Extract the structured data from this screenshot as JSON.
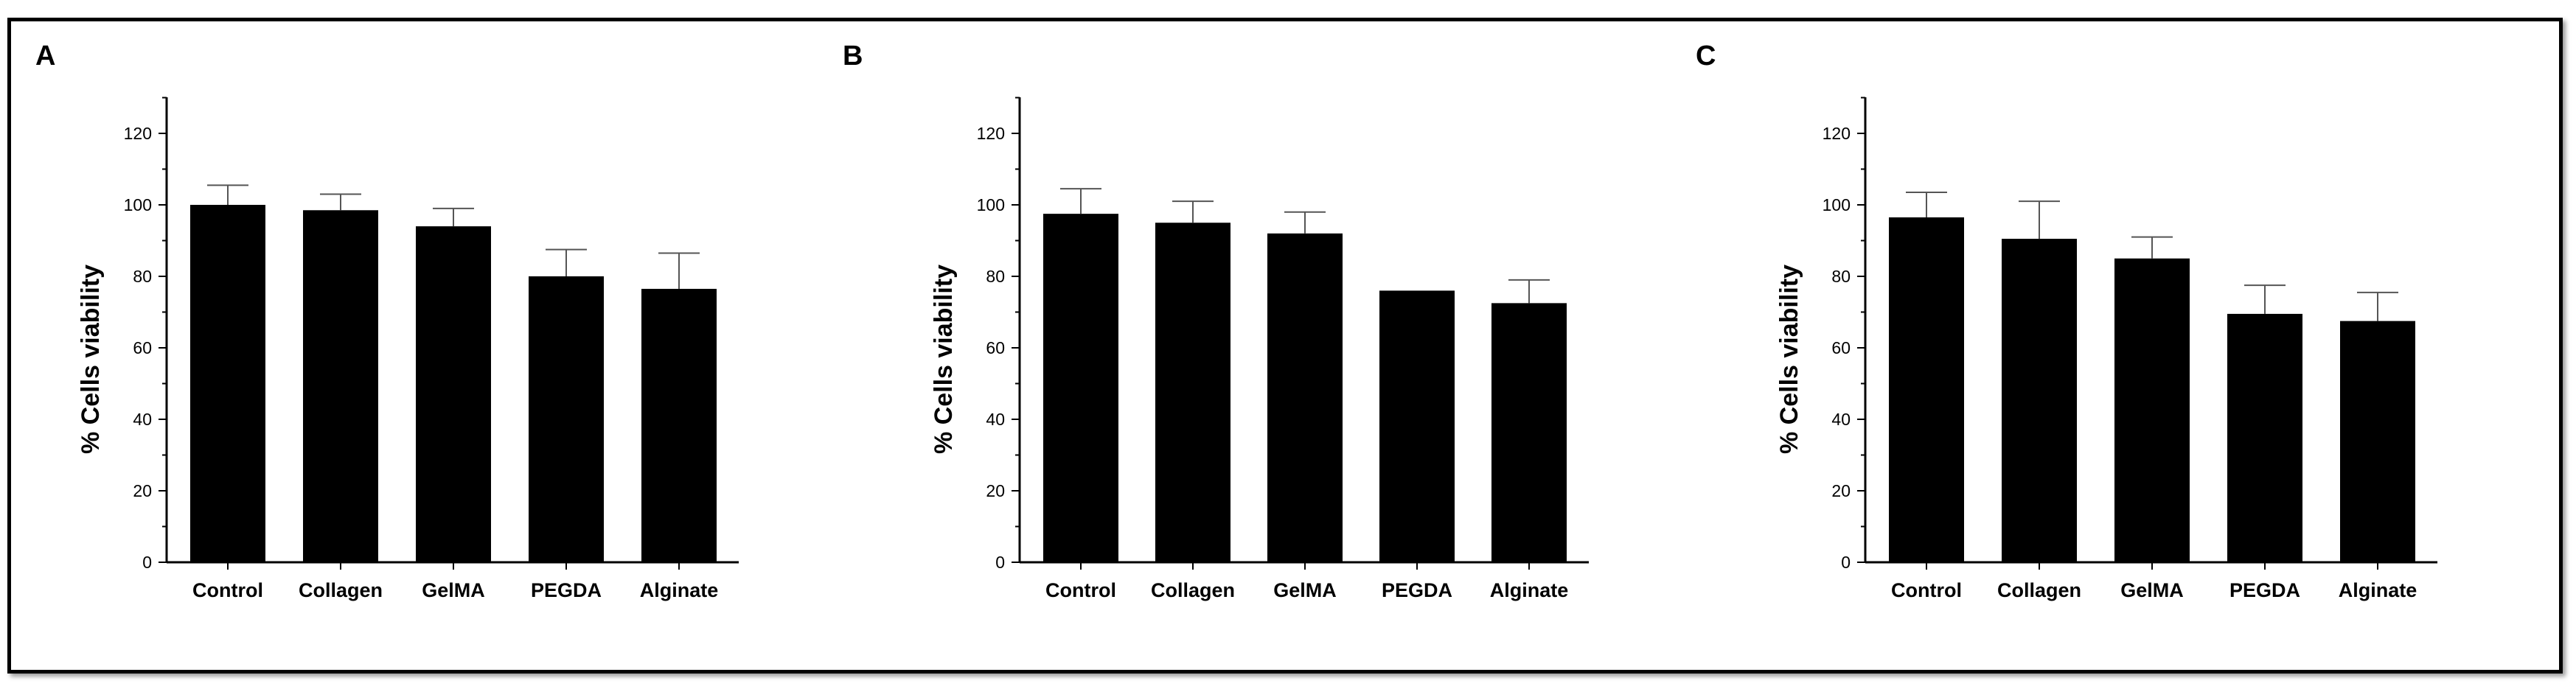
{
  "chart_data": [
    {
      "type": "bar",
      "panel_label": "A",
      "categories": [
        "Control",
        "Collagen",
        "GelMA",
        "PEGDA",
        "Alginate"
      ],
      "values": [
        100,
        98.5,
        94,
        80,
        76.5
      ],
      "errors": [
        5.5,
        4.5,
        5,
        7.5,
        10
      ],
      "ylabel": "% Cells viability",
      "ylim": [
        0,
        130
      ],
      "yticks": [
        0,
        20,
        40,
        60,
        80,
        100,
        120
      ],
      "grid": false
    },
    {
      "type": "bar",
      "panel_label": "B",
      "categories": [
        "Control",
        "Collagen",
        "GelMA",
        "PEGDA",
        "Alginate"
      ],
      "values": [
        97.5,
        95,
        92,
        76,
        72.5
      ],
      "errors": [
        7,
        6,
        6,
        0,
        6.5
      ],
      "ylabel": "% Cells viability",
      "ylim": [
        0,
        130
      ],
      "yticks": [
        0,
        20,
        40,
        60,
        80,
        100,
        120
      ],
      "grid": false
    },
    {
      "type": "bar",
      "panel_label": "C",
      "categories": [
        "Control",
        "Collagen",
        "GelMA",
        "PEGDA",
        "Alginate"
      ],
      "values": [
        96.5,
        90.5,
        85,
        69.5,
        67.5
      ],
      "errors": [
        7,
        10.5,
        6,
        8,
        8
      ],
      "ylabel": "% Cells viability",
      "ylim": [
        0,
        130
      ],
      "yticks": [
        0,
        20,
        40,
        60,
        80,
        100,
        120
      ],
      "grid": false
    }
  ],
  "style": {
    "bar_color": "#000000",
    "axis_color": "#000000",
    "error_color": "#555555"
  }
}
